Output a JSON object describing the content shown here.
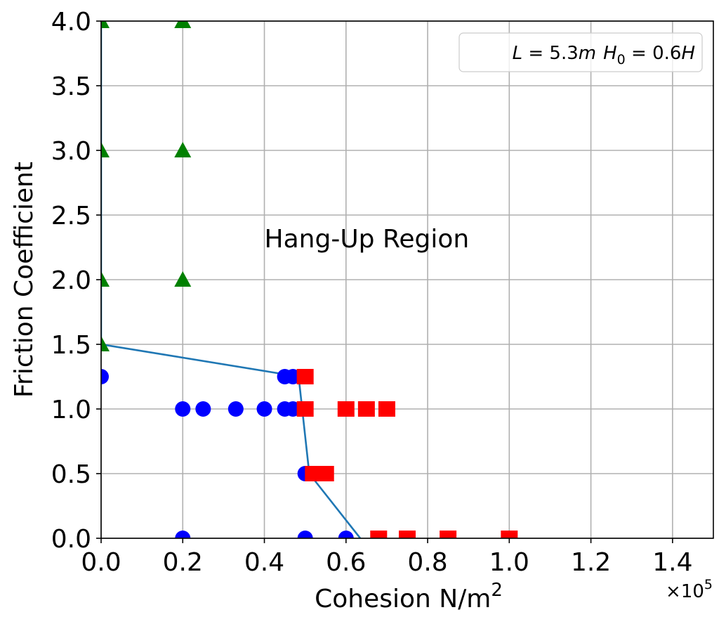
{
  "chart_data": {
    "type": "scatter",
    "xlabel_main": "Cohesion N/m",
    "xlabel_sup": "2",
    "ylabel": "Friction Coefficient",
    "x_offset_base": "×10",
    "x_offset_exp": "5",
    "xlim": [
      0,
      1.5
    ],
    "ylim": [
      0,
      4.0
    ],
    "xticks": [
      0.0,
      0.2,
      0.4,
      0.6,
      0.8,
      1.0,
      1.2,
      1.4
    ],
    "xtick_labels": [
      "0.0",
      "0.2",
      "0.4",
      "0.6",
      "0.8",
      "1.0",
      "1.2",
      "1.4"
    ],
    "yticks": [
      0.0,
      0.5,
      1.0,
      1.5,
      2.0,
      2.5,
      3.0,
      3.5,
      4.0
    ],
    "ytick_labels": [
      "0.0",
      "0.5",
      "1.0",
      "1.5",
      "2.0",
      "2.5",
      "3.0",
      "3.5",
      "4.0"
    ],
    "grid": true,
    "legend_position": "top-right",
    "legend": {
      "L_var": "L",
      "L_eq": " = 5.3",
      "L_unit": "m",
      "H_var": "H",
      "H_sub": "0",
      "H_eq": " = 0.6",
      "H_unit": "H"
    },
    "annotation": {
      "text": "Hang-Up Region",
      "x": 0.4,
      "y": 2.25
    },
    "series": [
      {
        "marker": "circle",
        "color": "#0000ff",
        "points": [
          [
            0.0,
            1.25
          ],
          [
            0.45,
            1.25
          ],
          [
            0.47,
            1.25
          ],
          [
            0.2,
            1.0
          ],
          [
            0.25,
            1.0
          ],
          [
            0.33,
            1.0
          ],
          [
            0.4,
            1.0
          ],
          [
            0.45,
            1.0
          ],
          [
            0.47,
            1.0
          ],
          [
            0.5,
            0.5
          ],
          [
            0.2,
            0.0
          ],
          [
            0.5,
            0.0
          ],
          [
            0.6,
            0.0
          ]
        ]
      },
      {
        "marker": "square",
        "color": "#ff0000",
        "points": [
          [
            0.5,
            1.25
          ],
          [
            0.5,
            1.0
          ],
          [
            0.6,
            1.0
          ],
          [
            0.65,
            1.0
          ],
          [
            0.7,
            1.0
          ],
          [
            0.52,
            0.5
          ],
          [
            0.55,
            0.5
          ],
          [
            0.68,
            0.0
          ],
          [
            0.75,
            0.0
          ],
          [
            0.85,
            0.0
          ],
          [
            1.0,
            0.0
          ]
        ]
      },
      {
        "marker": "triangle",
        "color": "#008000",
        "points": [
          [
            0.0,
            4.0
          ],
          [
            0.2,
            4.0
          ],
          [
            0.0,
            3.0
          ],
          [
            0.2,
            3.0
          ],
          [
            0.0,
            2.0
          ],
          [
            0.2,
            2.0
          ],
          [
            0.0,
            1.5
          ]
        ]
      }
    ],
    "boundary_line": {
      "color": "#1f77b4",
      "points": [
        [
          0.0,
          4.0
        ],
        [
          0.0,
          1.5
        ],
        [
          0.485,
          1.25
        ],
        [
          0.485,
          1.22
        ],
        [
          0.51,
          0.5
        ],
        [
          0.635,
          0.0
        ]
      ]
    }
  }
}
